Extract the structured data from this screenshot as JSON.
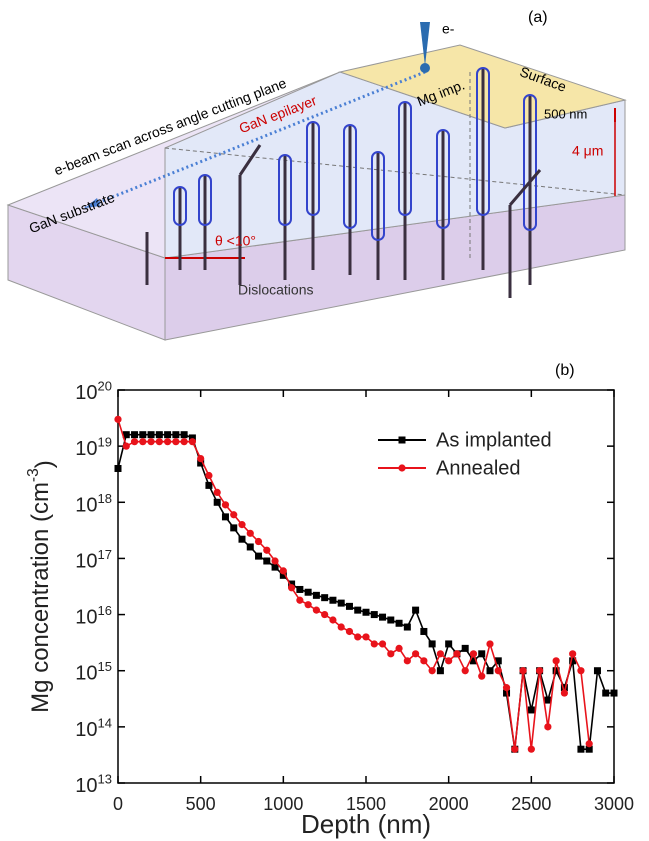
{
  "diagram": {
    "panel_label": "(a)",
    "electron": "e-",
    "scan": "e-beam scan across angle cutting plane",
    "substrate": "GaN substrate",
    "epilayer": "GaN epilayer",
    "implant": "Mg imp.",
    "surface": "Surface",
    "thickness_implant": "500 nm",
    "thickness_epi": "4 μm",
    "angle": "θ <10°",
    "dislocations": "Dislocations"
  },
  "chart_data": {
    "type": "line",
    "panel_label": "(b)",
    "x_label": "Depth (nm)",
    "y_label": "Mg concentration (cm^-3)",
    "log_y": true,
    "legend": "upper right",
    "xlim": [
      0,
      3000
    ],
    "xticks": [
      0,
      500,
      1000,
      1500,
      2000,
      2500,
      3000
    ],
    "ylim": [
      10000000000000.0,
      1e+20
    ],
    "yticks": [
      {
        "value": 10000000000000.0,
        "label": "10^13"
      },
      {
        "value": 100000000000000.0,
        "label": "10^14"
      },
      {
        "value": 1000000000000000.0,
        "label": "10^15"
      },
      {
        "value": 1e+16,
        "label": "10^16"
      },
      {
        "value": 1e+17,
        "label": "10^17"
      },
      {
        "value": 1e+18,
        "label": "10^18"
      },
      {
        "value": 1e+19,
        "label": "10^19"
      },
      {
        "value": 1e+20,
        "label": "10^20"
      }
    ],
    "x": [
      0,
      50,
      100,
      150,
      200,
      250,
      300,
      350,
      400,
      450,
      500,
      550,
      600,
      650,
      700,
      750,
      800,
      850,
      900,
      950,
      1000,
      1050,
      1100,
      1150,
      1200,
      1250,
      1300,
      1350,
      1400,
      1450,
      1500,
      1550,
      1600,
      1650,
      1700,
      1750,
      1800,
      1850,
      1900,
      1950,
      2000,
      2050,
      2100,
      2150,
      2200,
      2250,
      2300,
      2350,
      2400,
      2450,
      2500,
      2550,
      2600,
      2650,
      2700,
      2750,
      2800,
      2850,
      2900,
      2950,
      3000
    ],
    "series": [
      {
        "name": "As implanted",
        "color": "#000000",
        "marker": "square",
        "values": [
          4e+18,
          1.6e+19,
          1.6e+19,
          1.6e+19,
          1.6e+19,
          1.6e+19,
          1.6e+19,
          1.6e+19,
          1.6e+19,
          1.4e+19,
          5e+18,
          2e+18,
          1e+18,
          5.5e+17,
          3.5e+17,
          2.2e+17,
          1.6e+17,
          1.1e+17,
          9e+16,
          7e+16,
          5e+16,
          3.5e+16,
          2.8e+16,
          2.5e+16,
          2.2e+16,
          2e+16,
          1.8e+16,
          1.6e+16,
          1.4e+16,
          1.2e+16,
          1.1e+16,
          1e+16,
          9000000000000000.0,
          8000000000000000.0,
          7000000000000000.0,
          6000000000000000.0,
          1.2e+16,
          5000000000000000.0,
          3000000000000000.0,
          1000000000000000.0,
          3000000000000000.0,
          2000000000000000.0,
          2500000000000000.0,
          1500000000000000.0,
          2000000000000000.0,
          1000000000000000.0,
          1500000000000000.0,
          400000000000000.0,
          40000000000000.0,
          1000000000000000.0,
          200000000000000.0,
          1000000000000000.0,
          300000000000000.0,
          1000000000000000.0,
          500000000000000.0,
          1500000000000000.0,
          40000000000000.0,
          40000000000000.0,
          1000000000000000.0,
          400000000000000.0,
          400000000000000.0
        ]
      },
      {
        "name": "Annealed",
        "color": "#e8131b",
        "marker": "circle",
        "values": [
          3e+19,
          1e+19,
          1.2e+19,
          1.2e+19,
          1.2e+19,
          1.2e+19,
          1.2e+19,
          1.2e+19,
          1.2e+19,
          1.2e+19,
          6e+18,
          3e+18,
          1.5e+18,
          9e+17,
          6e+17,
          4e+17,
          2.8e+17,
          2e+17,
          1.4e+17,
          9e+16,
          6e+16,
          3e+16,
          1.8e+16,
          1.5e+16,
          1.2e+16,
          1e+16,
          8000000000000000.0,
          6000000000000000.0,
          5000000000000000.0,
          4000000000000000.0,
          4000000000000000.0,
          3000000000000000.0,
          3000000000000000.0,
          2000000000000000.0,
          2500000000000000.0,
          1500000000000000.0,
          2000000000000000.0,
          1500000000000000.0,
          1000000000000000.0,
          2000000000000000.0,
          1500000000000000.0,
          2000000000000000.0,
          1000000000000000.0,
          2000000000000000.0,
          800000000000000.0,
          3000000000000000.0,
          1000000000000000.0,
          500000000000000.0,
          40000000000000.0,
          1000000000000000.0,
          40000000000000.0,
          1000000000000000.0,
          100000000000000.0,
          1500000000000000.0,
          400000000000000.0,
          2000000000000000.0,
          1000000000000000.0,
          50000000000000.0,
          null,
          null,
          null
        ]
      }
    ]
  }
}
